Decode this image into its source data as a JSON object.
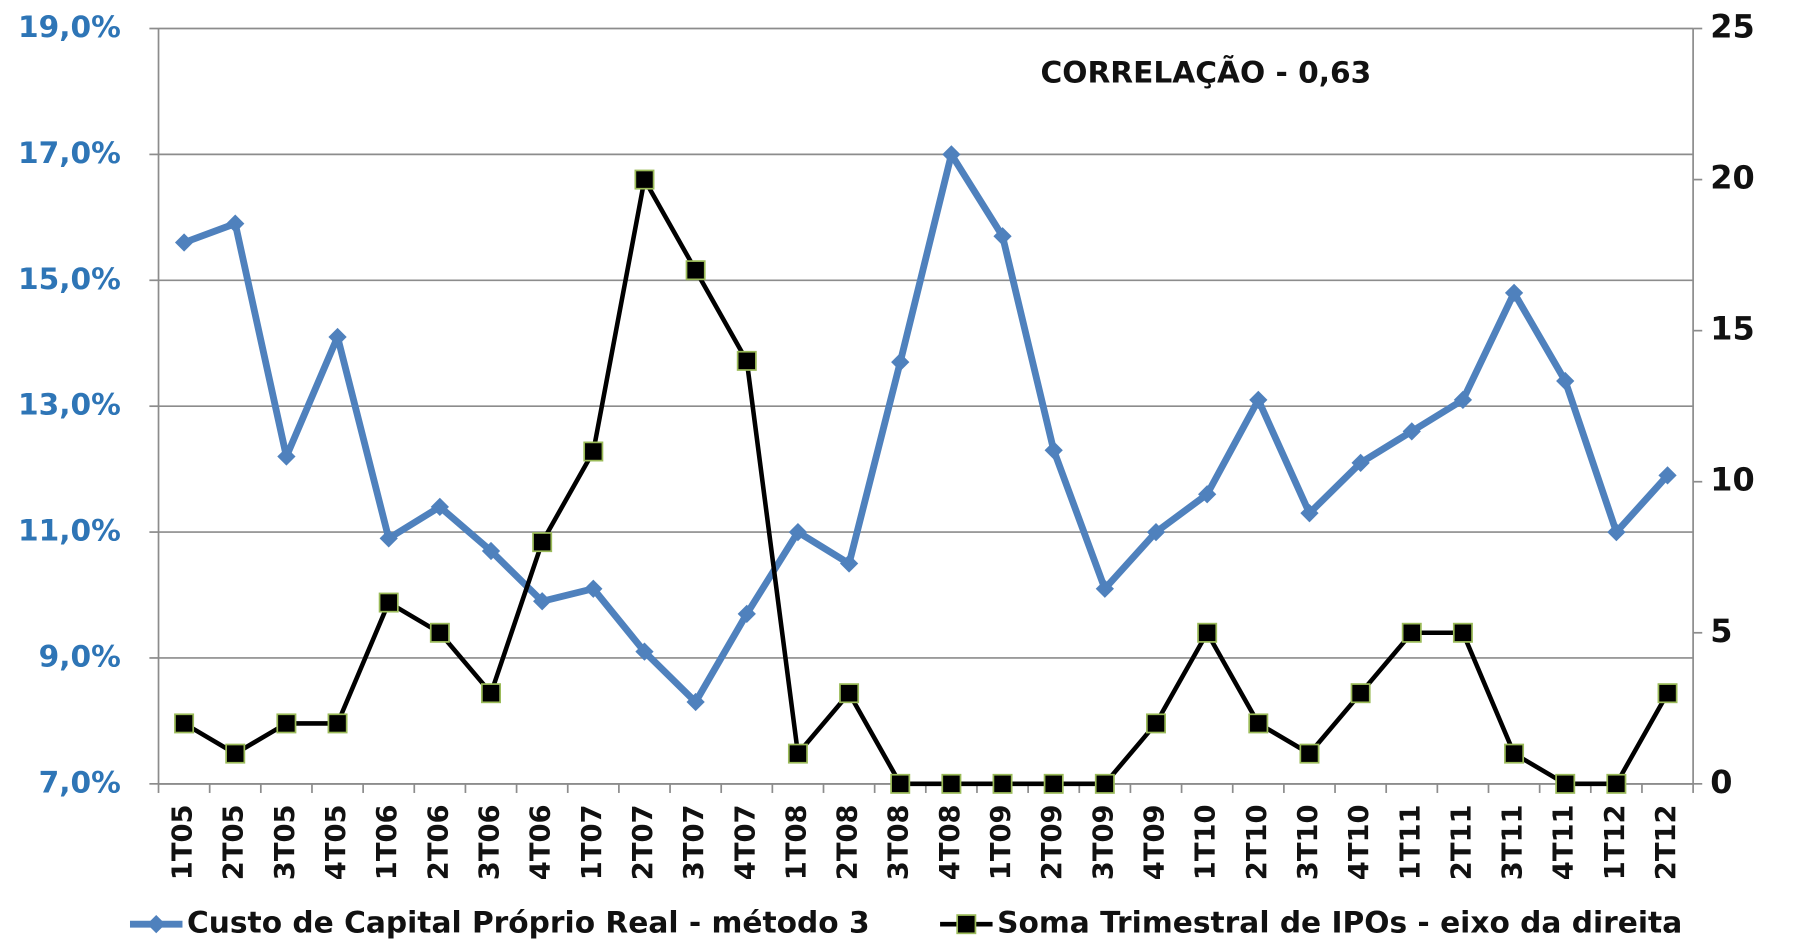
{
  "chart_data": {
    "type": "line",
    "annotation": "CORRELAÇÃO - 0,63",
    "categories": [
      "1T05",
      "2T05",
      "3T05",
      "4T05",
      "1T06",
      "2T06",
      "3T06",
      "4T06",
      "1T07",
      "2T07",
      "3T07",
      "4T07",
      "1T08",
      "2T08",
      "3T08",
      "4T08",
      "1T09",
      "2T09",
      "3T09",
      "4T09",
      "1T10",
      "2T10",
      "3T10",
      "4T10",
      "1T11",
      "2T11",
      "3T11",
      "4T11",
      "1T12",
      "2T12"
    ],
    "series": [
      {
        "name": "Custo de Capital Próprio Real - método 3",
        "color": "#4f81bd",
        "marker": "diamond",
        "values": [
          15.6,
          15.9,
          12.2,
          14.1,
          10.9,
          11.4,
          10.7,
          9.9,
          10.1,
          9.1,
          8.3,
          9.7,
          11.0,
          10.5,
          13.7,
          17.0,
          15.7,
          12.3,
          10.1,
          11.0,
          11.6,
          13.1,
          11.3,
          12.1,
          12.6,
          13.1,
          14.8,
          13.4,
          11.0,
          11.9
        ]
      },
      {
        "name": "Soma Trimestral de IPOs - eixo da direita",
        "color": "#000000",
        "marker": "square",
        "axis": "y2",
        "values": [
          2,
          1,
          2,
          2,
          6,
          5,
          3,
          8,
          11,
          20,
          17,
          14,
          1,
          3,
          0,
          0,
          0,
          0,
          0,
          2,
          5,
          2,
          1,
          3,
          5,
          5,
          1,
          0,
          0,
          3
        ]
      }
    ],
    "ylim": [
      7,
      19
    ],
    "yticks": [
      {
        "value": 7,
        "label": "7,0%"
      },
      {
        "value": 9,
        "label": "9,0%"
      },
      {
        "value": 11,
        "label": "11,0%"
      },
      {
        "value": 13,
        "label": "13,0%"
      },
      {
        "value": 15,
        "label": "15,0%"
      },
      {
        "value": 17,
        "label": "17,0%"
      },
      {
        "value": 19,
        "label": "19,0%"
      }
    ],
    "y2lim": [
      0,
      25
    ],
    "y2ticks": [
      0,
      5,
      10,
      15,
      20,
      25
    ],
    "grid": true
  }
}
